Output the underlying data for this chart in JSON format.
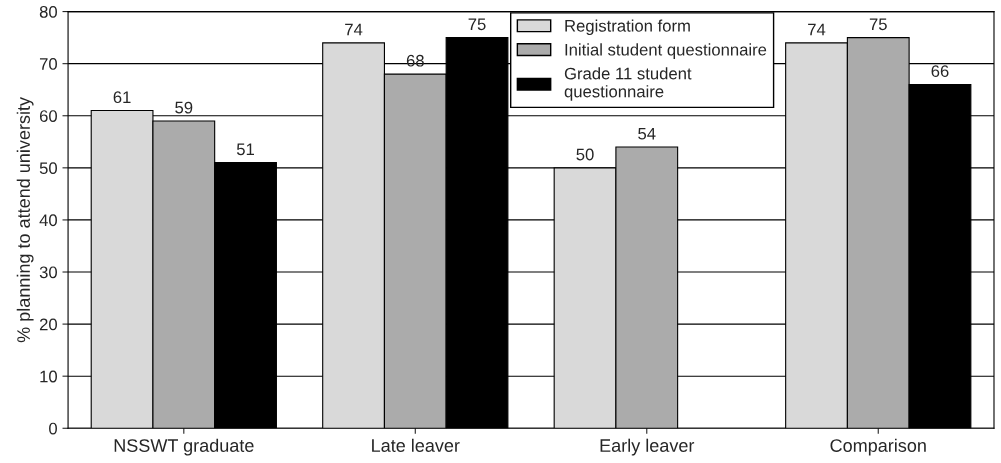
{
  "chart_data": {
    "type": "bar",
    "ylabel": "% planning to attend university",
    "categories": [
      "NSSWT graduate",
      "Late leaver",
      "Early leaver",
      "Comparison"
    ],
    "series": [
      {
        "name": "Registration form",
        "color": "#d9d9d9",
        "values": [
          61,
          74,
          50,
          74
        ]
      },
      {
        "name": "Initial student questionnaire",
        "color": "#ababab",
        "values": [
          59,
          68,
          54,
          75
        ]
      },
      {
        "name": "Grade 11 student\nquestionnaire",
        "color": "#000000",
        "values": [
          51,
          75,
          null,
          66
        ]
      }
    ],
    "ylim": [
      0,
      80
    ],
    "yticks": [
      0,
      10,
      20,
      30,
      40,
      50,
      60,
      70,
      80
    ],
    "grid": "y",
    "legend": "top",
    "data_labels": true
  }
}
